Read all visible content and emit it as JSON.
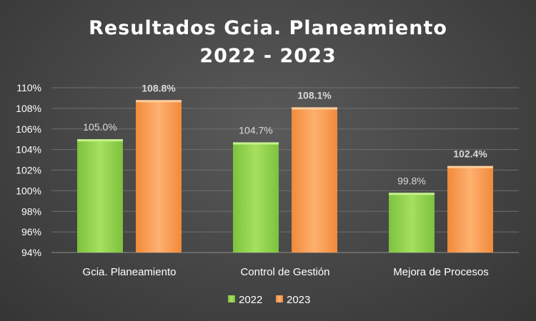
{
  "chart_data": {
    "type": "bar",
    "title_line1": "Resultados Gcia. Planeamiento",
    "title_line2": "2022 - 2023",
    "categories": [
      "Gcia. Planeamiento",
      "Control de Gestión",
      "Mejora de Procesos"
    ],
    "series": [
      {
        "name": "2022",
        "values": [
          105.0,
          104.7,
          99.8
        ],
        "labels": [
          "105.0%",
          "104.7%",
          "99.8%"
        ],
        "color": "#92d050"
      },
      {
        "name": "2023",
        "values": [
          108.8,
          108.1,
          102.4
        ],
        "labels": [
          "108.8%",
          "108.1%",
          "102.4%"
        ],
        "color": "#f79646"
      }
    ],
    "ylim": [
      94,
      110
    ],
    "yticks": [
      "94%",
      "96%",
      "98%",
      "100%",
      "102%",
      "104%",
      "106%",
      "108%",
      "110%"
    ],
    "grid": true,
    "legend": "bottom"
  }
}
